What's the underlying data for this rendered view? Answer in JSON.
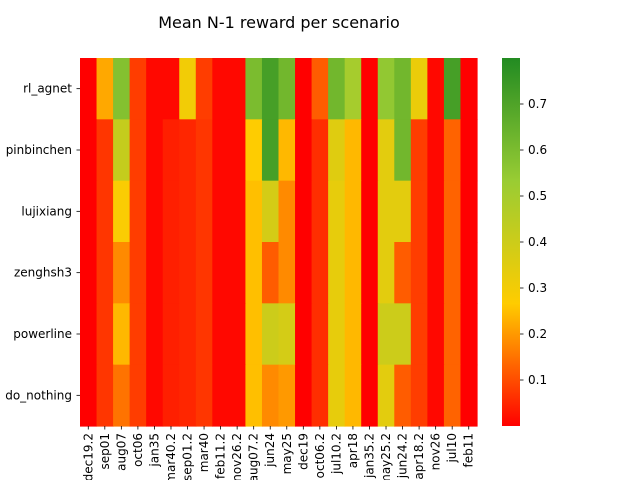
{
  "chart_data": {
    "type": "heatmap",
    "title": "Mean N-1 reward per scenario",
    "xlabel": "",
    "ylabel": "",
    "rows": [
      "rl_agnet",
      "pinbinchen",
      "lujixiang",
      "zenghsh3",
      "powerline",
      "do_nothing"
    ],
    "columns": [
      "dec19.2",
      "sep01",
      "aug07",
      "oct06",
      "jan35",
      "mar40.2",
      "sep01.2",
      "mar40",
      "feb11.2",
      "nov26.2",
      "aug07.2",
      "jun24",
      "may25",
      "dec19",
      "oct06.2",
      "jul10.2",
      "apr18",
      "jan35.2",
      "may25.2",
      "jun24.2",
      "apr18.2",
      "nov26",
      "jul10",
      "feb11"
    ],
    "values": [
      [
        0.0,
        0.22,
        0.58,
        0.08,
        0.01,
        0.01,
        0.3,
        0.08,
        0.01,
        0.01,
        0.6,
        0.72,
        0.62,
        0.0,
        0.12,
        0.62,
        0.5,
        0.0,
        0.55,
        0.62,
        0.32,
        0.01,
        0.72,
        0.0
      ],
      [
        0.0,
        0.07,
        0.42,
        0.08,
        0.01,
        0.04,
        0.05,
        0.07,
        0.01,
        0.01,
        0.27,
        0.72,
        0.24,
        0.0,
        0.06,
        0.35,
        0.24,
        0.0,
        0.34,
        0.62,
        0.08,
        0.01,
        0.13,
        0.0
      ],
      [
        0.0,
        0.07,
        0.28,
        0.08,
        0.01,
        0.04,
        0.05,
        0.07,
        0.01,
        0.01,
        0.25,
        0.38,
        0.18,
        0.0,
        0.06,
        0.33,
        0.24,
        0.0,
        0.34,
        0.34,
        0.08,
        0.01,
        0.13,
        0.0
      ],
      [
        0.0,
        0.07,
        0.18,
        0.08,
        0.01,
        0.04,
        0.05,
        0.07,
        0.01,
        0.01,
        0.25,
        0.12,
        0.18,
        0.0,
        0.06,
        0.33,
        0.24,
        0.0,
        0.34,
        0.12,
        0.08,
        0.01,
        0.13,
        0.0
      ],
      [
        0.0,
        0.07,
        0.24,
        0.08,
        0.01,
        0.04,
        0.05,
        0.07,
        0.01,
        0.01,
        0.25,
        0.4,
        0.38,
        0.0,
        0.06,
        0.33,
        0.24,
        0.0,
        0.4,
        0.4,
        0.08,
        0.01,
        0.13,
        0.0
      ],
      [
        0.0,
        0.07,
        0.15,
        0.08,
        0.01,
        0.04,
        0.05,
        0.07,
        0.01,
        0.01,
        0.25,
        0.18,
        0.2,
        0.0,
        0.06,
        0.33,
        0.24,
        0.0,
        0.34,
        0.12,
        0.08,
        0.01,
        0.13,
        0.0
      ]
    ],
    "vmin": 0.0,
    "vmax": 0.8,
    "colormap": [
      "#ff0000",
      "#ffcc00",
      "#99cc33",
      "#228b22"
    ],
    "colorbar": {
      "ticks": [
        0.1,
        0.2,
        0.3,
        0.4,
        0.5,
        0.6,
        0.7
      ],
      "tick_labels": [
        "0.1",
        "0.2",
        "0.3",
        "0.4",
        "0.5",
        "0.6",
        "0.7"
      ]
    },
    "grid": false,
    "legend": "colorbar-right"
  }
}
